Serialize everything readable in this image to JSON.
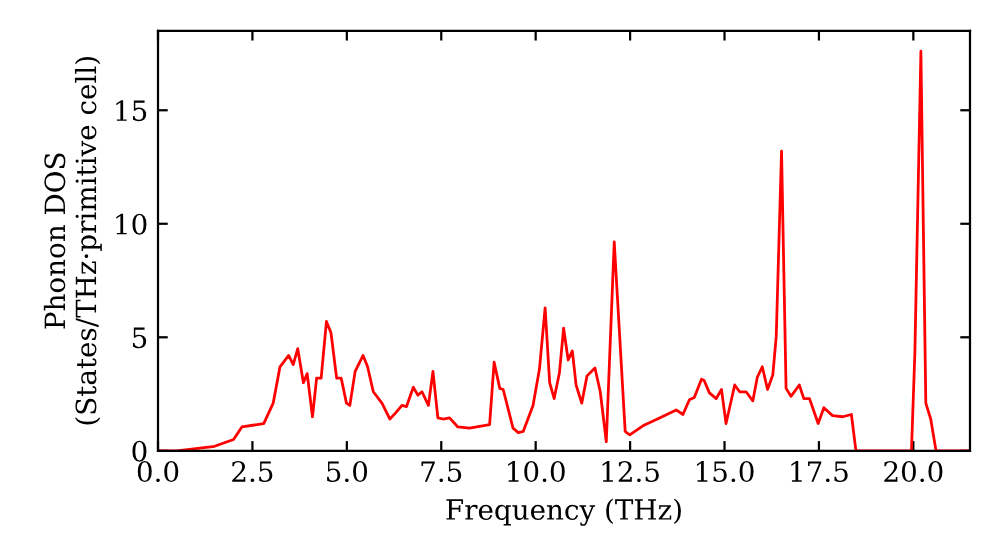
{
  "chart_data": {
    "type": "line",
    "xlabel": "Frequency (THz)",
    "ylabel": "Phonon DOS\n(States/THz·primitive cell)",
    "xlim": [
      0,
      21.5
    ],
    "ylim": [
      0,
      18.5
    ],
    "xticks": [
      {
        "value": 0,
        "label": "0.0"
      },
      2.5,
      {
        "value": 5,
        "label": "5.0"
      },
      7.5,
      {
        "value": 10,
        "label": "10.0"
      },
      12.5,
      {
        "value": 15,
        "label": "15.0"
      },
      17.5,
      {
        "value": 20,
        "label": "20.0"
      }
    ],
    "yticks": [
      0,
      5,
      10,
      15
    ],
    "grid": false,
    "legend": false,
    "marker": "none",
    "line_style": "solid",
    "series": [
      {
        "color": "#ff0000",
        "x": [
          0,
          0.5,
          1.0,
          1.5,
          2.0,
          2.22,
          2.8,
          3.05,
          3.23,
          3.46,
          3.58,
          3.7,
          3.85,
          3.95,
          4.09,
          4.2,
          4.32,
          4.46,
          4.58,
          4.73,
          4.85,
          4.99,
          5.08,
          5.22,
          5.43,
          5.55,
          5.7,
          5.93,
          6.14,
          6.28,
          6.46,
          6.58,
          6.76,
          6.88,
          6.99,
          7.16,
          7.28,
          7.41,
          7.55,
          7.72,
          7.94,
          8.25,
          8.78,
          8.9,
          9.05,
          9.14,
          9.4,
          9.54,
          9.67,
          9.93,
          10.1,
          10.25,
          10.37,
          10.49,
          10.63,
          10.74,
          10.86,
          10.97,
          11.07,
          11.22,
          11.36,
          11.57,
          11.71,
          11.87,
          12.08,
          12.37,
          12.49,
          12.84,
          13.28,
          13.72,
          13.9,
          14.07,
          14.2,
          14.39,
          14.46,
          14.6,
          14.78,
          14.92,
          15.04,
          15.27,
          15.4,
          15.57,
          15.75,
          15.87,
          16.0,
          16.14,
          16.28,
          16.37,
          16.51,
          16.63,
          16.76,
          16.98,
          17.1,
          17.25,
          17.48,
          17.63,
          17.86,
          18.13,
          18.36,
          18.48,
          19.95,
          20.04,
          20.2,
          20.33,
          20.46,
          20.6,
          21.5
        ],
        "values": [
          0,
          0,
          0.1,
          0.2,
          0.5,
          1.05,
          1.2,
          2.1,
          3.7,
          4.2,
          3.8,
          4.5,
          3.0,
          3.4,
          1.5,
          3.2,
          3.2,
          5.7,
          5.2,
          3.2,
          3.2,
          2.1,
          2.0,
          3.5,
          4.2,
          3.7,
          2.6,
          2.1,
          1.4,
          1.65,
          2.0,
          1.95,
          2.8,
          2.45,
          2.6,
          2.0,
          3.5,
          1.45,
          1.4,
          1.45,
          1.05,
          1.0,
          1.15,
          3.9,
          2.75,
          2.7,
          1.0,
          0.8,
          0.85,
          2.0,
          3.6,
          6.3,
          3.0,
          2.3,
          3.45,
          5.4,
          4.0,
          4.4,
          2.9,
          2.1,
          3.3,
          3.65,
          2.6,
          0.4,
          9.2,
          0.85,
          0.7,
          1.1,
          1.45,
          1.8,
          1.6,
          2.25,
          2.35,
          3.15,
          3.1,
          2.55,
          2.3,
          2.7,
          1.2,
          2.9,
          2.6,
          2.6,
          2.2,
          3.25,
          3.7,
          2.7,
          3.35,
          5.05,
          13.2,
          2.75,
          2.4,
          2.9,
          2.3,
          2.3,
          1.2,
          1.9,
          1.55,
          1.5,
          1.6,
          0,
          0,
          4.3,
          17.6,
          2.1,
          1.4,
          0,
          0
        ]
      }
    ]
  }
}
